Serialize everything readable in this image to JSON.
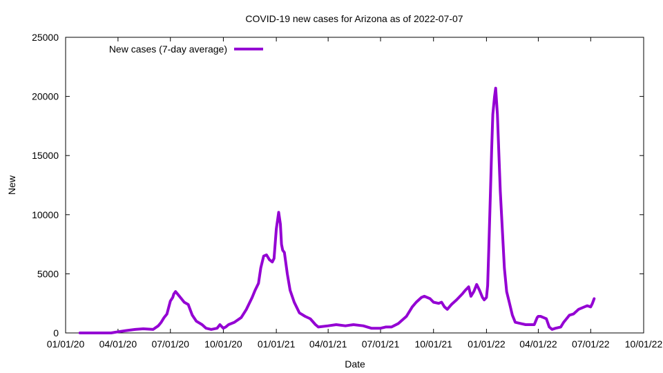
{
  "chart_data": {
    "type": "line",
    "title": "COVID-19 new cases for Arizona as of 2022-07-07",
    "xlabel": "Date",
    "ylabel": "New",
    "xlim": [
      "2020-01-01",
      "2022-10-01"
    ],
    "ylim": [
      0,
      25000
    ],
    "x_ticks": [
      "01/01/20",
      "04/01/20",
      "07/01/20",
      "10/01/20",
      "01/01/21",
      "04/01/21",
      "07/01/21",
      "10/01/21",
      "01/01/22",
      "04/01/22",
      "07/01/22",
      "10/01/22"
    ],
    "y_ticks": [
      0,
      5000,
      10000,
      15000,
      20000,
      25000
    ],
    "grid": false,
    "legend_position": "top-left",
    "series": [
      {
        "name": "New cases (7-day average)",
        "color": "#9400d3",
        "x": [
          "2020-01-26",
          "2020-03-01",
          "2020-03-20",
          "2020-04-01",
          "2020-04-15",
          "2020-05-01",
          "2020-05-15",
          "2020-06-01",
          "2020-06-10",
          "2020-06-15",
          "2020-06-20",
          "2020-06-25",
          "2020-07-01",
          "2020-07-05",
          "2020-07-07",
          "2020-07-10",
          "2020-07-15",
          "2020-07-20",
          "2020-07-25",
          "2020-08-01",
          "2020-08-08",
          "2020-08-15",
          "2020-08-25",
          "2020-09-01",
          "2020-09-10",
          "2020-09-20",
          "2020-09-25",
          "2020-10-01",
          "2020-10-05",
          "2020-10-10",
          "2020-10-20",
          "2020-11-01",
          "2020-11-10",
          "2020-11-20",
          "2020-11-25",
          "2020-12-01",
          "2020-12-05",
          "2020-12-10",
          "2020-12-15",
          "2020-12-20",
          "2020-12-25",
          "2020-12-28",
          "2021-01-01",
          "2021-01-03",
          "2021-01-05",
          "2021-01-08",
          "2021-01-10",
          "2021-01-12",
          "2021-01-15",
          "2021-01-20",
          "2021-01-25",
          "2021-02-01",
          "2021-02-10",
          "2021-02-20",
          "2021-03-01",
          "2021-03-10",
          "2021-03-15",
          "2021-04-01",
          "2021-04-15",
          "2021-05-01",
          "2021-05-15",
          "2021-06-01",
          "2021-06-15",
          "2021-07-01",
          "2021-07-10",
          "2021-07-20",
          "2021-08-01",
          "2021-08-15",
          "2021-08-25",
          "2021-09-01",
          "2021-09-10",
          "2021-09-15",
          "2021-09-25",
          "2021-10-01",
          "2021-10-10",
          "2021-10-15",
          "2021-10-20",
          "2021-10-25",
          "2021-11-01",
          "2021-11-10",
          "2021-11-20",
          "2021-11-25",
          "2021-12-01",
          "2021-12-05",
          "2021-12-10",
          "2021-12-15",
          "2021-12-20",
          "2021-12-25",
          "2021-12-28",
          "2022-01-01",
          "2022-01-03",
          "2022-01-05",
          "2022-01-08",
          "2022-01-10",
          "2022-01-12",
          "2022-01-15",
          "2022-01-17",
          "2022-01-20",
          "2022-01-25",
          "2022-02-01",
          "2022-02-05",
          "2022-02-10",
          "2022-02-15",
          "2022-02-20",
          "2022-03-01",
          "2022-03-10",
          "2022-03-15",
          "2022-03-20",
          "2022-03-25",
          "2022-03-30",
          "2022-04-01",
          "2022-04-05",
          "2022-04-10",
          "2022-04-15",
          "2022-04-20",
          "2022-04-25",
          "2022-05-01",
          "2022-05-10",
          "2022-05-15",
          "2022-05-20",
          "2022-05-25",
          "2022-06-01",
          "2022-06-10",
          "2022-06-20",
          "2022-06-25",
          "2022-07-01",
          "2022-07-04",
          "2022-07-07"
        ],
        "y": [
          0,
          0,
          0,
          100,
          200,
          300,
          350,
          300,
          600,
          900,
          1300,
          1600,
          2700,
          3000,
          3300,
          3500,
          3200,
          2900,
          2600,
          2400,
          1500,
          1000,
          700,
          400,
          300,
          400,
          700,
          400,
          500,
          700,
          900,
          1300,
          2000,
          3000,
          3600,
          4200,
          5500,
          6500,
          6600,
          6200,
          6000,
          6300,
          8800,
          9500,
          10200,
          9200,
          7500,
          7000,
          6800,
          5000,
          3600,
          2600,
          1700,
          1400,
          1200,
          700,
          500,
          600,
          700,
          600,
          700,
          600,
          400,
          400,
          500,
          500,
          800,
          1400,
          2200,
          2600,
          3000,
          3100,
          2900,
          2600,
          2500,
          2600,
          2200,
          2000,
          2400,
          2800,
          3300,
          3600,
          3900,
          3100,
          3500,
          4100,
          3600,
          3000,
          2800,
          3000,
          4000,
          7000,
          12000,
          15500,
          18500,
          20000,
          20700,
          18500,
          12000,
          5500,
          3500,
          2500,
          1500,
          900,
          800,
          700,
          700,
          700,
          700,
          1300,
          1400,
          1400,
          1300,
          1200,
          500,
          300,
          400,
          500,
          900,
          1200,
          1500,
          1600,
          2000,
          2200,
          2300,
          2200,
          2500,
          2900
        ]
      }
    ]
  }
}
